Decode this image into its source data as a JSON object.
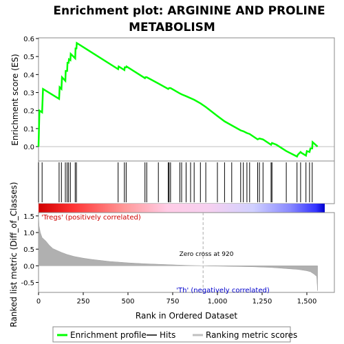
{
  "chart_data": [
    {
      "type": "line",
      "title": "Enrichment plot: ARGININE AND PROLINE METABOLISM",
      "ylabel": "Enrichment score (ES)",
      "xlim": [
        0,
        1600
      ],
      "ylim": [
        -0.08,
        0.6
      ],
      "yticks": [
        "0.0",
        "0.1",
        "0.2",
        "0.3",
        "0.4",
        "0.5",
        "0.6"
      ],
      "series": [
        {
          "name": "Enrichment profile",
          "color": "#00ff00",
          "x": [
            0,
            5,
            20,
            25,
            115,
            118,
            128,
            131,
            150,
            152,
            160,
            162,
            168,
            170,
            178,
            180,
            205,
            207,
            212,
            214,
            445,
            448,
            480,
            482,
            490,
            492,
            595,
            598,
            605,
            670,
            725,
            730,
            738,
            790,
            800,
            825,
            870,
            905,
            935,
            1000,
            1040,
            1130,
            1145,
            1165,
            1180,
            1225,
            1235,
            1255,
            1300,
            1305,
            1330,
            1385,
            1445,
            1450,
            1465,
            1470,
            1495,
            1500,
            1515,
            1520,
            1530,
            1532,
            1560
          ],
          "y": [
            0.0,
            0.2,
            0.19,
            0.32,
            0.265,
            0.33,
            0.32,
            0.385,
            0.365,
            0.42,
            0.42,
            0.465,
            0.465,
            0.485,
            0.48,
            0.515,
            0.49,
            0.545,
            0.545,
            0.575,
            0.43,
            0.445,
            0.425,
            0.44,
            0.44,
            0.445,
            0.38,
            0.385,
            0.385,
            0.35,
            0.32,
            0.325,
            0.325,
            0.295,
            0.29,
            0.28,
            0.26,
            0.24,
            0.22,
            0.17,
            0.14,
            0.09,
            0.085,
            0.075,
            0.07,
            0.04,
            0.045,
            0.04,
            0.01,
            0.02,
            0.01,
            -0.025,
            -0.055,
            -0.045,
            -0.03,
            -0.035,
            -0.05,
            -0.025,
            -0.03,
            -0.01,
            -0.01,
            0.025,
            0.0
          ]
        }
      ]
    },
    {
      "type": "scatter",
      "title": "",
      "legend_name": "Hits",
      "x": [
        0,
        20,
        115,
        128,
        150,
        160,
        168,
        178,
        205,
        212,
        445,
        480,
        490,
        595,
        605,
        670,
        725,
        730,
        738,
        790,
        800,
        825,
        850,
        870,
        905,
        935,
        1000,
        1040,
        1080,
        1130,
        1145,
        1165,
        1180,
        1225,
        1235,
        1255,
        1300,
        1305,
        1385,
        1445,
        1465,
        1495,
        1515,
        1530
      ],
      "xlim": [
        0,
        1600
      ]
    },
    {
      "type": "area",
      "title": "",
      "xlabel": "Rank in Ordered Dataset",
      "ylabel": "Ranked list metric (Diff_of_Classes)",
      "xlim": [
        0,
        1600
      ],
      "ylim": [
        -0.8,
        1.6
      ],
      "yticks": [
        "-0.5",
        "0.0",
        "0.5",
        "1.0",
        "1.5"
      ],
      "xticks": [
        "0",
        "250",
        "500",
        "750",
        "1,000",
        "1,250",
        "1,500"
      ],
      "series": [
        {
          "name": "Ranking metric scores",
          "color": "#c0c0c0",
          "x": [
            0,
            3,
            10,
            20,
            40,
            60,
            80,
            100,
            130,
            160,
            200,
            250,
            300,
            350,
            400,
            450,
            500,
            550,
            600,
            650,
            700,
            750,
            800,
            850,
            900,
            920,
            950,
            1000,
            1100,
            1200,
            1300,
            1350,
            1400,
            1450,
            1500,
            1520,
            1540,
            1555,
            1560
          ],
          "y": [
            1.55,
            1.2,
            1.0,
            0.85,
            0.75,
            0.62,
            0.52,
            0.47,
            0.4,
            0.34,
            0.28,
            0.23,
            0.19,
            0.16,
            0.13,
            0.11,
            0.09,
            0.075,
            0.06,
            0.05,
            0.04,
            0.03,
            0.02,
            0.01,
            0.005,
            0.0,
            -0.005,
            -0.01,
            -0.02,
            -0.03,
            -0.05,
            -0.07,
            -0.09,
            -0.11,
            -0.15,
            -0.18,
            -0.25,
            -0.32,
            -0.75
          ]
        }
      ],
      "zero_cross": 920,
      "annotations": {
        "positive": "'Tregs' (positively correlated)",
        "zero": "Zero cross at 920",
        "negative": "'Th' (negatively correlated)"
      }
    }
  ],
  "legend": {
    "entries": [
      {
        "label": "Enrichment profile",
        "color": "#00ff00"
      },
      {
        "label": "Hits",
        "color": "#000000"
      },
      {
        "label": "Ranking metric scores",
        "color": "#c0c0c0"
      }
    ]
  }
}
